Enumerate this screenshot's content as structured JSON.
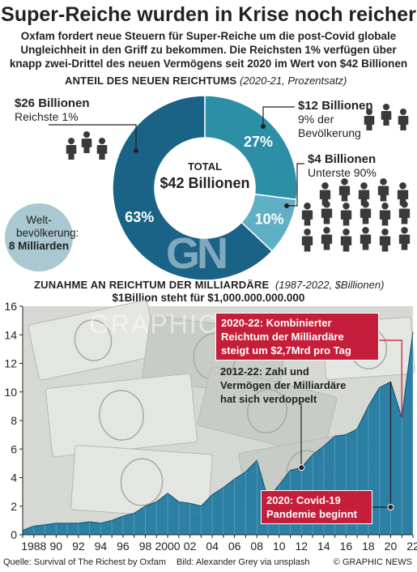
{
  "header": {
    "title": "Super-Reiche wurden in Krise noch reicher",
    "subtitle": "Oxfam fordert neue Steuern für Super-Reiche um die post-Covid globale Ungleichheit in den Griff zu bekommen. Die Reichsten 1% verfügen über knapp zwei-Drittel des neuen Vermögens seit 2020 im Wert von $42 Billionen"
  },
  "donut_section": {
    "heading": "Anteil des neuen Reichtums",
    "heading_sub": "(2020-21, Prozentsatz)",
    "center_label": "TOTAL",
    "center_value": "$42 Billionen",
    "annotations": [
      {
        "value": "$26 Billionen",
        "label": "Reichste 1%"
      },
      {
        "value": "$12 Billionen",
        "label": "9% der Bevölkerung"
      },
      {
        "value": "$4 Billionen",
        "label": "Unterste 90%"
      }
    ],
    "world": {
      "label": "Welt-bevölkerung:",
      "value": "8 Milliarden"
    },
    "icon_name": "person-silhouette-icon"
  },
  "chart_section": {
    "heading": "Zunahme an Reichtum der Milliardäre",
    "heading_sub": "(1987-2022, $Billionen)",
    "note": "$1Billion steht für $1,000.000.000.000",
    "callouts": {
      "c2020_22": "2020-22: Kombinierter Reichtum der Milliardäre steigt um $2,7Mrd pro Tag",
      "c2012_22": "2012-22: Zahl und Vermögen der Milliardäre hat sich verdoppelt",
      "c2020": "2020: Covid-19 Pandemie beginnt"
    }
  },
  "footer": {
    "source": "Quelle: Survival of The Richest by Oxfam",
    "photo": "Bild: Alexander Grey via unsplash",
    "brand": "© GRAPHIC NEWS"
  },
  "colors": {
    "donut_dark": "#1a6387",
    "donut_mid": "#2c8fa6",
    "donut_light": "#5fb0c4",
    "area_fill": "#1f78a0",
    "callout_red": "#c41e3a",
    "icon": "#3a3a3a"
  },
  "chart_data": [
    {
      "type": "pie",
      "title": "Anteil des neuen Reichtums",
      "categories": [
        "Reichste 1%",
        "9% der Bevölkerung",
        "Unterste 90%"
      ],
      "values": [
        63,
        27,
        10
      ],
      "value_labels": [
        "63%",
        "27%",
        "10%"
      ],
      "amounts": [
        "$26 Billionen",
        "$12 Billionen",
        "$4 Billionen"
      ]
    },
    {
      "type": "area",
      "title": "Zunahme an Reichtum der Milliardäre",
      "xlabel": "",
      "ylabel": "",
      "x": [
        1987,
        1988,
        1989,
        1990,
        1991,
        1992,
        1993,
        1994,
        1995,
        1996,
        1997,
        1998,
        1999,
        2000,
        2001,
        2002,
        2003,
        2004,
        2005,
        2006,
        2007,
        2008,
        2009,
        2010,
        2011,
        2012,
        2013,
        2014,
        2015,
        2016,
        2017,
        2018,
        2019,
        2020,
        2021,
        2022
      ],
      "values": [
        0.3,
        0.6,
        0.7,
        0.8,
        0.8,
        0.8,
        0.9,
        0.8,
        1.0,
        1.3,
        1.5,
        2.0,
        2.3,
        2.9,
        2.3,
        2.2,
        2.0,
        2.8,
        3.3,
        3.9,
        4.4,
        5.2,
        2.5,
        3.5,
        4.5,
        4.7,
        5.6,
        6.2,
        6.9,
        7.0,
        7.4,
        9.0,
        10.3,
        10.7,
        8.2,
        14.2
      ],
      "xlim": [
        1987,
        2022
      ],
      "ylim": [
        0,
        16
      ],
      "y_ticks": [
        0,
        2,
        4,
        6,
        8,
        10,
        12,
        14,
        16
      ],
      "x_ticks": [
        1988,
        1990,
        1992,
        1994,
        1996,
        1998,
        2000,
        2002,
        2004,
        2006,
        2008,
        2010,
        2012,
        2014,
        2016,
        2018,
        2020,
        2022
      ],
      "x_tick_labels": [
        "1988",
        "90",
        "92",
        "94",
        "96",
        "98",
        "2000",
        "02",
        "04",
        "06",
        "08",
        "10",
        "12",
        "14",
        "16",
        "18",
        "20",
        "22"
      ],
      "grid": false
    }
  ]
}
